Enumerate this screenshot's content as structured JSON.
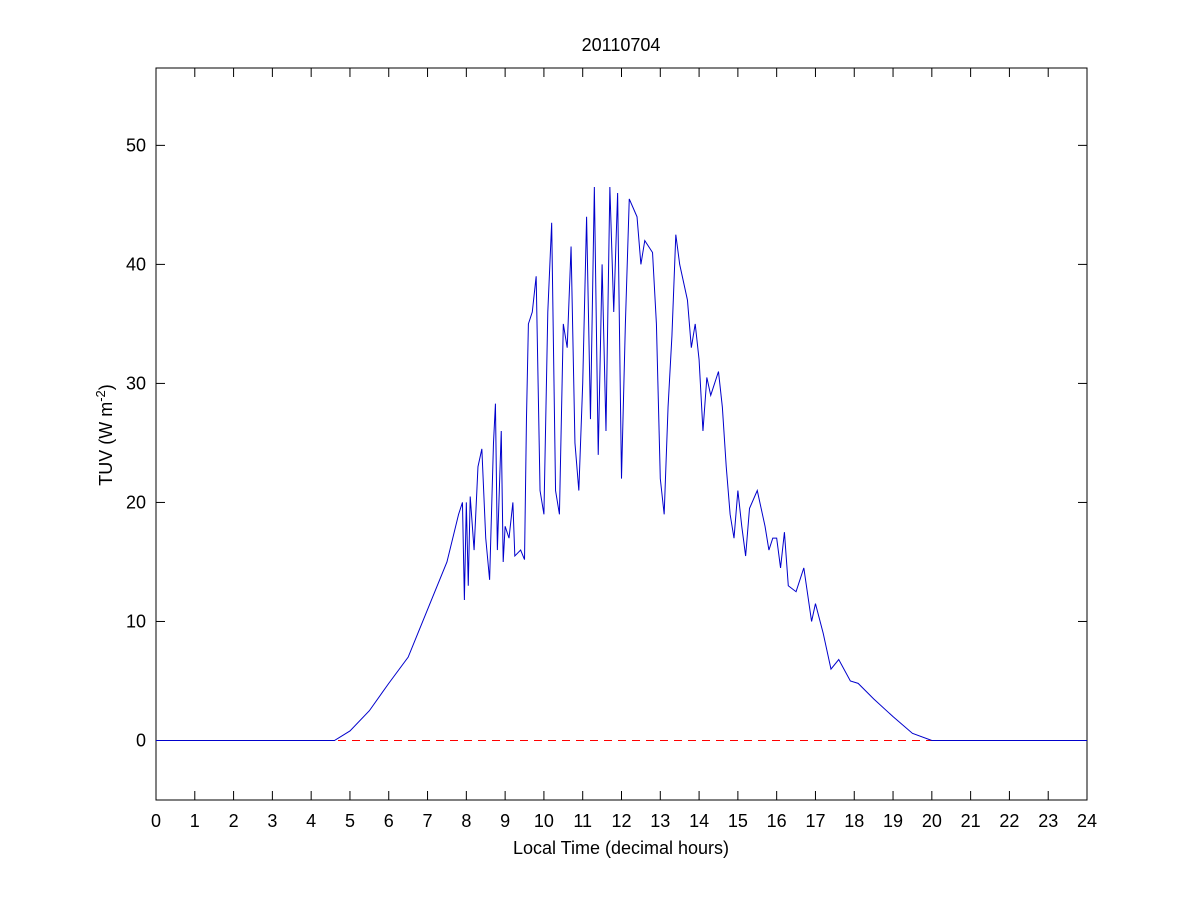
{
  "chart_data": {
    "type": "line",
    "title": "20110704",
    "xlabel": "Local Time (decimal hours)",
    "ylabel": {
      "text": "TUV (W m",
      "sup": "-2",
      "close": ")"
    },
    "xlim": [
      0,
      24
    ],
    "ylim": [
      -5,
      56.5
    ],
    "xticks": [
      0,
      1,
      2,
      3,
      4,
      5,
      6,
      7,
      8,
      9,
      10,
      11,
      12,
      13,
      14,
      15,
      16,
      17,
      18,
      19,
      20,
      21,
      22,
      23,
      24
    ],
    "yticks": [
      0,
      10,
      20,
      30,
      40,
      50
    ],
    "reference_line": {
      "y": 0,
      "color": "#ff0000",
      "style": "dashed"
    },
    "series": [
      {
        "color": "#0000cc",
        "x": [
          0,
          4.6,
          5,
          5.5,
          6,
          6.5,
          7,
          7.5,
          7.8,
          7.9,
          7.95,
          8.0,
          8.05,
          8.1,
          8.2,
          8.3,
          8.4,
          8.5,
          8.6,
          8.7,
          8.75,
          8.8,
          8.9,
          8.95,
          9.0,
          9.1,
          9.2,
          9.25,
          9.4,
          9.5,
          9.55,
          9.6,
          9.7,
          9.8,
          9.85,
          9.9,
          10.0,
          10.1,
          10.2,
          10.3,
          10.4,
          10.5,
          10.6,
          10.7,
          10.8,
          10.9,
          11.0,
          11.1,
          11.2,
          11.3,
          11.4,
          11.5,
          11.6,
          11.7,
          11.8,
          11.9,
          12.0,
          12.1,
          12.2,
          12.4,
          12.5,
          12.6,
          12.8,
          12.9,
          13.0,
          13.1,
          13.2,
          13.3,
          13.4,
          13.5,
          13.7,
          13.8,
          13.9,
          14.0,
          14.1,
          14.2,
          14.3,
          14.4,
          14.5,
          14.6,
          14.7,
          14.8,
          14.9,
          15.0,
          15.1,
          15.2,
          15.3,
          15.5,
          15.7,
          15.8,
          15.9,
          16.0,
          16.1,
          16.2,
          16.3,
          16.5,
          16.7,
          16.9,
          17.0,
          17.2,
          17.4,
          17.6,
          17.9,
          18.1,
          18.5,
          19.0,
          19.5,
          20.0,
          24
        ],
        "values": [
          0,
          0,
          0.8,
          2.5,
          4.8,
          7,
          11,
          15,
          19,
          20,
          11.8,
          20,
          13,
          20.5,
          16,
          23,
          24.5,
          17,
          13.5,
          25,
          28.3,
          16,
          26,
          15,
          18,
          17,
          20,
          15.5,
          16,
          15.2,
          27,
          35,
          36,
          39,
          30,
          21,
          19,
          36,
          43.5,
          21,
          19,
          35,
          33,
          41.5,
          25,
          21,
          30,
          44,
          27,
          46.5,
          24,
          40,
          26,
          46.5,
          36,
          46,
          22,
          35,
          45.5,
          44,
          40,
          42,
          41,
          35,
          22,
          19,
          28,
          34,
          42.5,
          40,
          37,
          33,
          35,
          32,
          26,
          30.5,
          29,
          30,
          31,
          28,
          23,
          19,
          17,
          21,
          18,
          15.5,
          19.5,
          21,
          18,
          16,
          17,
          17,
          14.5,
          17.5,
          13,
          12.5,
          14.5,
          10,
          11.5,
          9,
          6,
          6.8,
          5,
          4.8,
          3.5,
          2,
          0.6,
          0,
          0
        ]
      }
    ]
  }
}
